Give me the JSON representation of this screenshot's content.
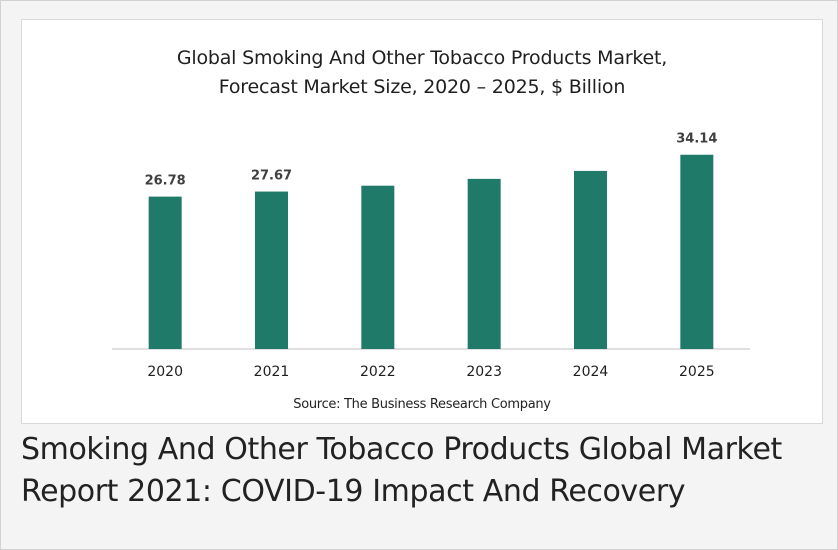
{
  "chart_data": {
    "type": "bar",
    "title_line1": "Global Smoking And Other Tobacco Products Market,",
    "title_line2": "Forecast Market Size, 2020 – 2025, $ Billion",
    "categories": [
      "2020",
      "2021",
      "2022",
      "2023",
      "2024",
      "2025"
    ],
    "values": [
      26.78,
      27.67,
      28.7,
      29.9,
      31.3,
      34.14
    ],
    "data_labels": [
      "26.78",
      "27.67",
      "",
      "",
      "",
      "34.14"
    ],
    "ylim": [
      0,
      35
    ],
    "grid": false,
    "bar_color": "#1f7a6a",
    "source": "Source: The Business Research Company"
  },
  "caption": {
    "line1": "Smoking And Other Tobacco Products Global Market",
    "line2": "Report 2021: COVID-19 Impact And Recovery"
  }
}
